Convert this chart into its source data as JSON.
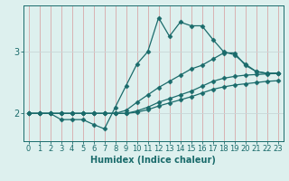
{
  "xlabel": "Humidex (Indice chaleur)",
  "bg_color": "#ddf0ee",
  "line_color": "#1a6b6b",
  "grid_vcolor": "#d8a8a8",
  "grid_hcolor": "#c8d8d8",
  "axes_color": "#1a6b6b",
  "text_color": "#1a6b6b",
  "xlim": [
    -0.5,
    23.5
  ],
  "ylim": [
    1.55,
    3.75
  ],
  "yticks": [
    2,
    3
  ],
  "xticks": [
    0,
    1,
    2,
    3,
    4,
    5,
    6,
    7,
    8,
    9,
    10,
    11,
    12,
    13,
    14,
    15,
    16,
    17,
    18,
    19,
    20,
    21,
    22,
    23
  ],
  "line1_x": [
    0,
    1,
    2,
    3,
    4,
    5,
    6,
    7,
    8,
    9,
    10,
    11,
    12,
    13,
    14,
    15,
    16,
    17,
    18,
    19,
    20,
    21,
    22,
    23
  ],
  "line1_y": [
    2.0,
    2.0,
    2.0,
    1.9,
    1.9,
    1.9,
    1.82,
    1.75,
    2.1,
    2.45,
    2.8,
    3.0,
    3.55,
    3.25,
    3.48,
    3.42,
    3.42,
    3.2,
    3.0,
    2.95,
    2.8,
    2.68,
    2.65,
    2.65
  ],
  "line2_x": [
    0,
    1,
    2,
    3,
    4,
    5,
    6,
    7,
    8,
    9,
    10,
    11,
    12,
    13,
    14,
    15,
    16,
    17,
    18,
    19,
    20,
    21,
    22,
    23
  ],
  "line2_y": [
    2.0,
    2.0,
    2.0,
    2.0,
    2.0,
    2.0,
    2.0,
    2.0,
    2.0,
    2.05,
    2.18,
    2.3,
    2.42,
    2.52,
    2.62,
    2.72,
    2.78,
    2.88,
    2.98,
    2.98,
    2.78,
    2.68,
    2.65,
    2.65
  ],
  "line3_x": [
    0,
    1,
    2,
    3,
    4,
    5,
    6,
    7,
    8,
    9,
    10,
    11,
    12,
    13,
    14,
    15,
    16,
    17,
    18,
    19,
    20,
    21,
    22,
    23
  ],
  "line3_y": [
    2.0,
    2.0,
    2.0,
    2.0,
    2.0,
    2.0,
    2.0,
    2.0,
    2.0,
    2.0,
    2.04,
    2.1,
    2.18,
    2.24,
    2.3,
    2.36,
    2.44,
    2.52,
    2.57,
    2.6,
    2.62,
    2.63,
    2.64,
    2.65
  ],
  "line4_x": [
    0,
    1,
    2,
    3,
    4,
    5,
    6,
    7,
    8,
    9,
    10,
    11,
    12,
    13,
    14,
    15,
    16,
    17,
    18,
    19,
    20,
    21,
    22,
    23
  ],
  "line4_y": [
    2.0,
    2.0,
    2.0,
    2.0,
    2.0,
    2.0,
    2.0,
    2.0,
    2.0,
    2.0,
    2.02,
    2.06,
    2.12,
    2.17,
    2.22,
    2.27,
    2.33,
    2.39,
    2.43,
    2.46,
    2.48,
    2.5,
    2.52,
    2.53
  ],
  "tick_fontsize": 6.0,
  "label_fontsize": 7.0,
  "linewidth": 0.9,
  "marker": "D",
  "markersize": 2.5
}
